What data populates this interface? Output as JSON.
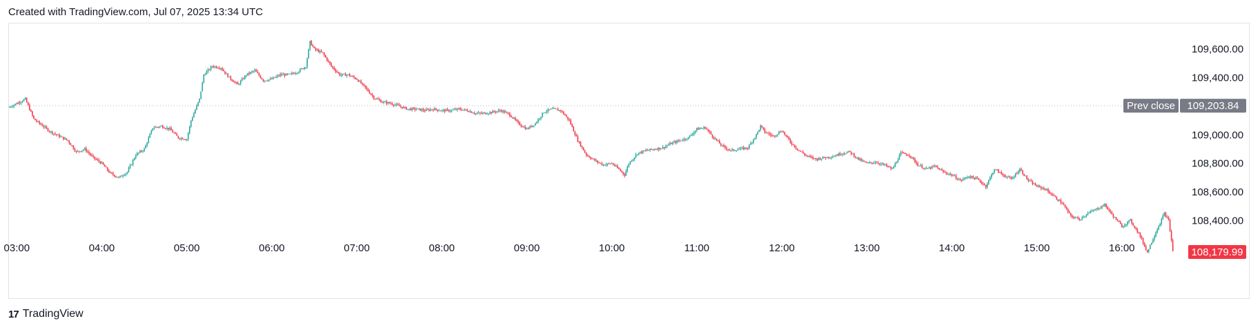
{
  "header": {
    "text": "Created with TradingView.com, Jul 07, 2025 13:34 UTC"
  },
  "footer": {
    "brand_mark": "17",
    "brand_name": "TradingView"
  },
  "colors": {
    "up": "#26a69a",
    "down": "#f23645",
    "prev_close_tag": "#787b86",
    "last_price_tag": "#f23645",
    "grid_dotted": "#b2b5be"
  },
  "chart_data": {
    "type": "candlestick",
    "x_unit": "hours (UTC)",
    "xlim": [
      2.9,
      16.7
    ],
    "ylim": [
      108040,
      109750
    ],
    "x_ticks": [
      {
        "label": "03:00",
        "value": 3
      },
      {
        "label": "04:00",
        "value": 4
      },
      {
        "label": "05:00",
        "value": 5
      },
      {
        "label": "06:00",
        "value": 6
      },
      {
        "label": "07:00",
        "value": 7
      },
      {
        "label": "08:00",
        "value": 8
      },
      {
        "label": "09:00",
        "value": 9
      },
      {
        "label": "10:00",
        "value": 10
      },
      {
        "label": "11:00",
        "value": 11
      },
      {
        "label": "12:00",
        "value": 12
      },
      {
        "label": "13:00",
        "value": 13
      },
      {
        "label": "14:00",
        "value": 14
      },
      {
        "label": "15:00",
        "value": 15
      },
      {
        "label": "16:00",
        "value": 16
      }
    ],
    "y_ticks": [
      {
        "label": "109,600.00",
        "value": 109600
      },
      {
        "label": "109,400.00",
        "value": 109400
      },
      {
        "label": "109,000.00",
        "value": 109000
      },
      {
        "label": "108,800.00",
        "value": 108800
      },
      {
        "label": "108,600.00",
        "value": 108600
      },
      {
        "label": "108,400.00",
        "value": 108400
      }
    ],
    "prev_close": {
      "label": "Prev close",
      "value_text": "109,203.84",
      "value": 109203.84
    },
    "last_price": {
      "value_text": "108,179.99",
      "value": 108179.99
    },
    "price_path": [
      [
        2.9,
        109190
      ],
      [
        3.1,
        109250
      ],
      [
        3.2,
        109110
      ],
      [
        3.4,
        109020
      ],
      [
        3.6,
        108960
      ],
      [
        3.7,
        108880
      ],
      [
        3.8,
        108900
      ],
      [
        3.9,
        108840
      ],
      [
        4.0,
        108800
      ],
      [
        4.1,
        108730
      ],
      [
        4.2,
        108700
      ],
      [
        4.3,
        108740
      ],
      [
        4.4,
        108860
      ],
      [
        4.5,
        108900
      ],
      [
        4.6,
        109050
      ],
      [
        4.7,
        109060
      ],
      [
        4.8,
        109040
      ],
      [
        4.9,
        108980
      ],
      [
        5.0,
        108970
      ],
      [
        5.05,
        109100
      ],
      [
        5.15,
        109250
      ],
      [
        5.2,
        109420
      ],
      [
        5.3,
        109480
      ],
      [
        5.4,
        109470
      ],
      [
        5.5,
        109400
      ],
      [
        5.6,
        109350
      ],
      [
        5.7,
        109420
      ],
      [
        5.8,
        109450
      ],
      [
        5.9,
        109380
      ],
      [
        6.0,
        109390
      ],
      [
        6.1,
        109420
      ],
      [
        6.2,
        109420
      ],
      [
        6.3,
        109440
      ],
      [
        6.4,
        109480
      ],
      [
        6.45,
        109650
      ],
      [
        6.5,
        109600
      ],
      [
        6.6,
        109570
      ],
      [
        6.7,
        109480
      ],
      [
        6.8,
        109420
      ],
      [
        6.9,
        109420
      ],
      [
        7.0,
        109390
      ],
      [
        7.1,
        109330
      ],
      [
        7.2,
        109260
      ],
      [
        7.3,
        109230
      ],
      [
        7.4,
        109220
      ],
      [
        7.5,
        109200
      ],
      [
        7.6,
        109180
      ],
      [
        7.7,
        109180
      ],
      [
        7.8,
        109170
      ],
      [
        7.9,
        109180
      ],
      [
        8.0,
        109170
      ],
      [
        8.1,
        109170
      ],
      [
        8.2,
        109180
      ],
      [
        8.3,
        109170
      ],
      [
        8.4,
        109150
      ],
      [
        8.5,
        109150
      ],
      [
        8.6,
        109160
      ],
      [
        8.7,
        109170
      ],
      [
        8.8,
        109140
      ],
      [
        8.9,
        109080
      ],
      [
        9.0,
        109040
      ],
      [
        9.1,
        109080
      ],
      [
        9.2,
        109160
      ],
      [
        9.3,
        109180
      ],
      [
        9.4,
        109170
      ],
      [
        9.5,
        109100
      ],
      [
        9.6,
        108960
      ],
      [
        9.7,
        108860
      ],
      [
        9.8,
        108820
      ],
      [
        9.9,
        108790
      ],
      [
        10.0,
        108800
      ],
      [
        10.1,
        108750
      ],
      [
        10.15,
        108720
      ],
      [
        10.2,
        108800
      ],
      [
        10.3,
        108870
      ],
      [
        10.4,
        108890
      ],
      [
        10.5,
        108900
      ],
      [
        10.6,
        108910
      ],
      [
        10.7,
        108940
      ],
      [
        10.8,
        108960
      ],
      [
        10.9,
        108980
      ],
      [
        11.0,
        109040
      ],
      [
        11.1,
        109050
      ],
      [
        11.2,
        108980
      ],
      [
        11.3,
        108920
      ],
      [
        11.4,
        108890
      ],
      [
        11.5,
        108900
      ],
      [
        11.6,
        108910
      ],
      [
        11.7,
        109000
      ],
      [
        11.75,
        109060
      ],
      [
        11.8,
        109020
      ],
      [
        11.9,
        108990
      ],
      [
        12.0,
        109030
      ],
      [
        12.1,
        108950
      ],
      [
        12.2,
        108890
      ],
      [
        12.3,
        108850
      ],
      [
        12.4,
        108830
      ],
      [
        12.5,
        108840
      ],
      [
        12.6,
        108850
      ],
      [
        12.7,
        108870
      ],
      [
        12.8,
        108880
      ],
      [
        12.9,
        108830
      ],
      [
        13.0,
        108800
      ],
      [
        13.1,
        108810
      ],
      [
        13.2,
        108790
      ],
      [
        13.3,
        108760
      ],
      [
        13.4,
        108870
      ],
      [
        13.5,
        108860
      ],
      [
        13.6,
        108790
      ],
      [
        13.7,
        108760
      ],
      [
        13.8,
        108780
      ],
      [
        13.9,
        108740
      ],
      [
        14.0,
        108720
      ],
      [
        14.1,
        108680
      ],
      [
        14.2,
        108710
      ],
      [
        14.3,
        108690
      ],
      [
        14.4,
        108640
      ],
      [
        14.5,
        108760
      ],
      [
        14.6,
        108720
      ],
      [
        14.7,
        108690
      ],
      [
        14.8,
        108760
      ],
      [
        14.9,
        108680
      ],
      [
        15.0,
        108640
      ],
      [
        15.1,
        108620
      ],
      [
        15.2,
        108570
      ],
      [
        15.3,
        108520
      ],
      [
        15.4,
        108430
      ],
      [
        15.5,
        108410
      ],
      [
        15.6,
        108450
      ],
      [
        15.7,
        108480
      ],
      [
        15.8,
        108510
      ],
      [
        15.9,
        108430
      ],
      [
        16.0,
        108360
      ],
      [
        16.1,
        108400
      ],
      [
        16.2,
        108310
      ],
      [
        16.3,
        108180
      ],
      [
        16.4,
        108320
      ],
      [
        16.5,
        108450
      ],
      [
        16.55,
        108400
      ],
      [
        16.6,
        108190
      ]
    ]
  }
}
